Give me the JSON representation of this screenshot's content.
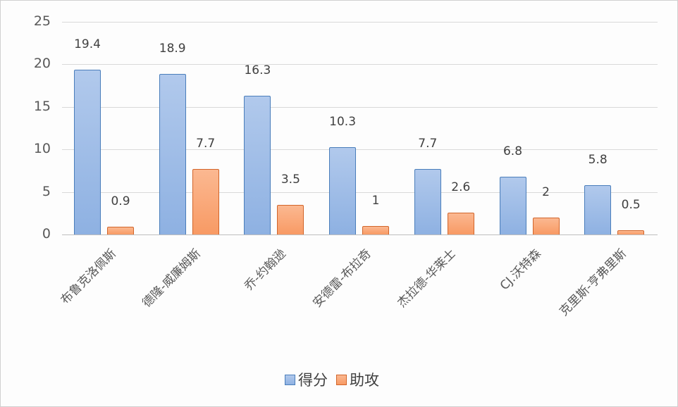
{
  "chart_data": {
    "type": "bar",
    "title": "",
    "xlabel": "",
    "ylabel": "",
    "ylim": [
      0,
      25
    ],
    "yticks": [
      0,
      5,
      10,
      15,
      20,
      25
    ],
    "grid": true,
    "legend_position": "bottom",
    "categories": [
      "布鲁克洛佩斯",
      "德隆-威廉姆斯",
      "乔-约翰逊",
      "安德雷-布拉奇",
      "杰拉德-华莱士",
      "CJ.沃特森",
      "克里斯-亨弗里斯"
    ],
    "series": [
      {
        "name": "得分",
        "color": "#8eb1e2",
        "border": "#4a7ebb",
        "values": [
          19.4,
          18.9,
          16.3,
          10.3,
          7.7,
          6.8,
          5.8
        ],
        "labels": [
          "19.4",
          "18.9",
          "16.3",
          "10.3",
          "7.7",
          "6.8",
          "5.8"
        ]
      },
      {
        "name": "助攻",
        "color": "#f89a64",
        "border": "#d2652a",
        "values": [
          0.9,
          7.7,
          3.5,
          1,
          2.6,
          2,
          0.5
        ],
        "labels": [
          "0.9",
          "7.7",
          "3.5",
          "1",
          "2.6",
          "2",
          "0.5"
        ]
      }
    ]
  }
}
